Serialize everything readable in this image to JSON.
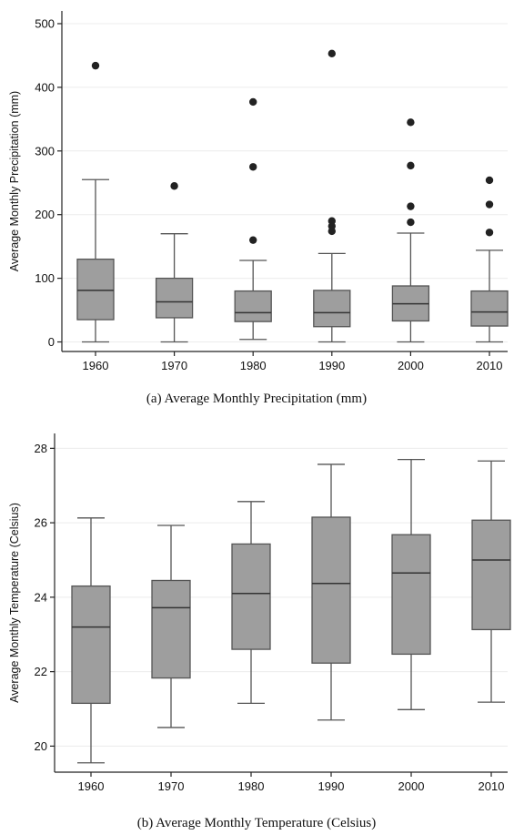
{
  "chart_data": [
    {
      "type": "box",
      "caption": "(a)  Average Monthly Precipitation (mm)",
      "ylabel": "Average Monthly Precipitation (mm)",
      "xlabel": "",
      "categories": [
        "1960",
        "1970",
        "1980",
        "1990",
        "2000",
        "2010"
      ],
      "ylim": [
        -15,
        520
      ],
      "yticks": [
        0,
        100,
        200,
        300,
        400,
        500
      ],
      "grid": true,
      "box_color": "#9e9e9e",
      "boxes": [
        {
          "category": "1960",
          "whisker_low": 0,
          "q1": 35,
          "median": 81,
          "q3": 130,
          "whisker_high": 255,
          "outliers": [
            434
          ]
        },
        {
          "category": "1970",
          "whisker_low": 0,
          "q1": 38,
          "median": 63,
          "q3": 100,
          "whisker_high": 170,
          "outliers": [
            245
          ]
        },
        {
          "category": "1980",
          "whisker_low": 4,
          "q1": 32,
          "median": 46,
          "q3": 80,
          "whisker_high": 128,
          "outliers": [
            160,
            275,
            377
          ]
        },
        {
          "category": "1990",
          "whisker_low": 0,
          "q1": 24,
          "median": 46,
          "q3": 81,
          "whisker_high": 139,
          "outliers": [
            174,
            182,
            190,
            453
          ]
        },
        {
          "category": "2000",
          "whisker_low": 0,
          "q1": 33,
          "median": 60,
          "q3": 88,
          "whisker_high": 171,
          "outliers": [
            188,
            213,
            277,
            345
          ]
        },
        {
          "category": "2010",
          "whisker_low": 0,
          "q1": 25,
          "median": 47,
          "q3": 80,
          "whisker_high": 144,
          "outliers": [
            172,
            216,
            254
          ]
        }
      ]
    },
    {
      "type": "box",
      "caption": "(b)  Average Monthly Temperature (Celsius)",
      "ylabel": "Average Monthly Temperature (Celsius)",
      "xlabel": "",
      "categories": [
        "1960",
        "1970",
        "1980",
        "1990",
        "2000",
        "2010"
      ],
      "ylim": [
        19.3,
        28.4
      ],
      "yticks": [
        20,
        22,
        24,
        26,
        28
      ],
      "grid": true,
      "box_color": "#9e9e9e",
      "boxes": [
        {
          "category": "1960",
          "whisker_low": 19.55,
          "q1": 21.15,
          "median": 23.2,
          "q3": 24.3,
          "whisker_high": 26.13,
          "outliers": []
        },
        {
          "category": "1970",
          "whisker_low": 20.5,
          "q1": 21.83,
          "median": 23.72,
          "q3": 24.45,
          "whisker_high": 25.93,
          "outliers": []
        },
        {
          "category": "1980",
          "whisker_low": 21.15,
          "q1": 22.6,
          "median": 24.1,
          "q3": 25.43,
          "whisker_high": 26.57,
          "outliers": []
        },
        {
          "category": "1990",
          "whisker_low": 20.7,
          "q1": 22.23,
          "median": 24.37,
          "q3": 26.15,
          "whisker_high": 27.57,
          "outliers": []
        },
        {
          "category": "2000",
          "whisker_low": 20.98,
          "q1": 22.47,
          "median": 24.65,
          "q3": 25.68,
          "whisker_high": 27.7,
          "outliers": []
        },
        {
          "category": "2010",
          "whisker_low": 21.18,
          "q1": 23.13,
          "median": 25.0,
          "q3": 26.07,
          "whisker_high": 27.66,
          "outliers": []
        }
      ]
    }
  ]
}
